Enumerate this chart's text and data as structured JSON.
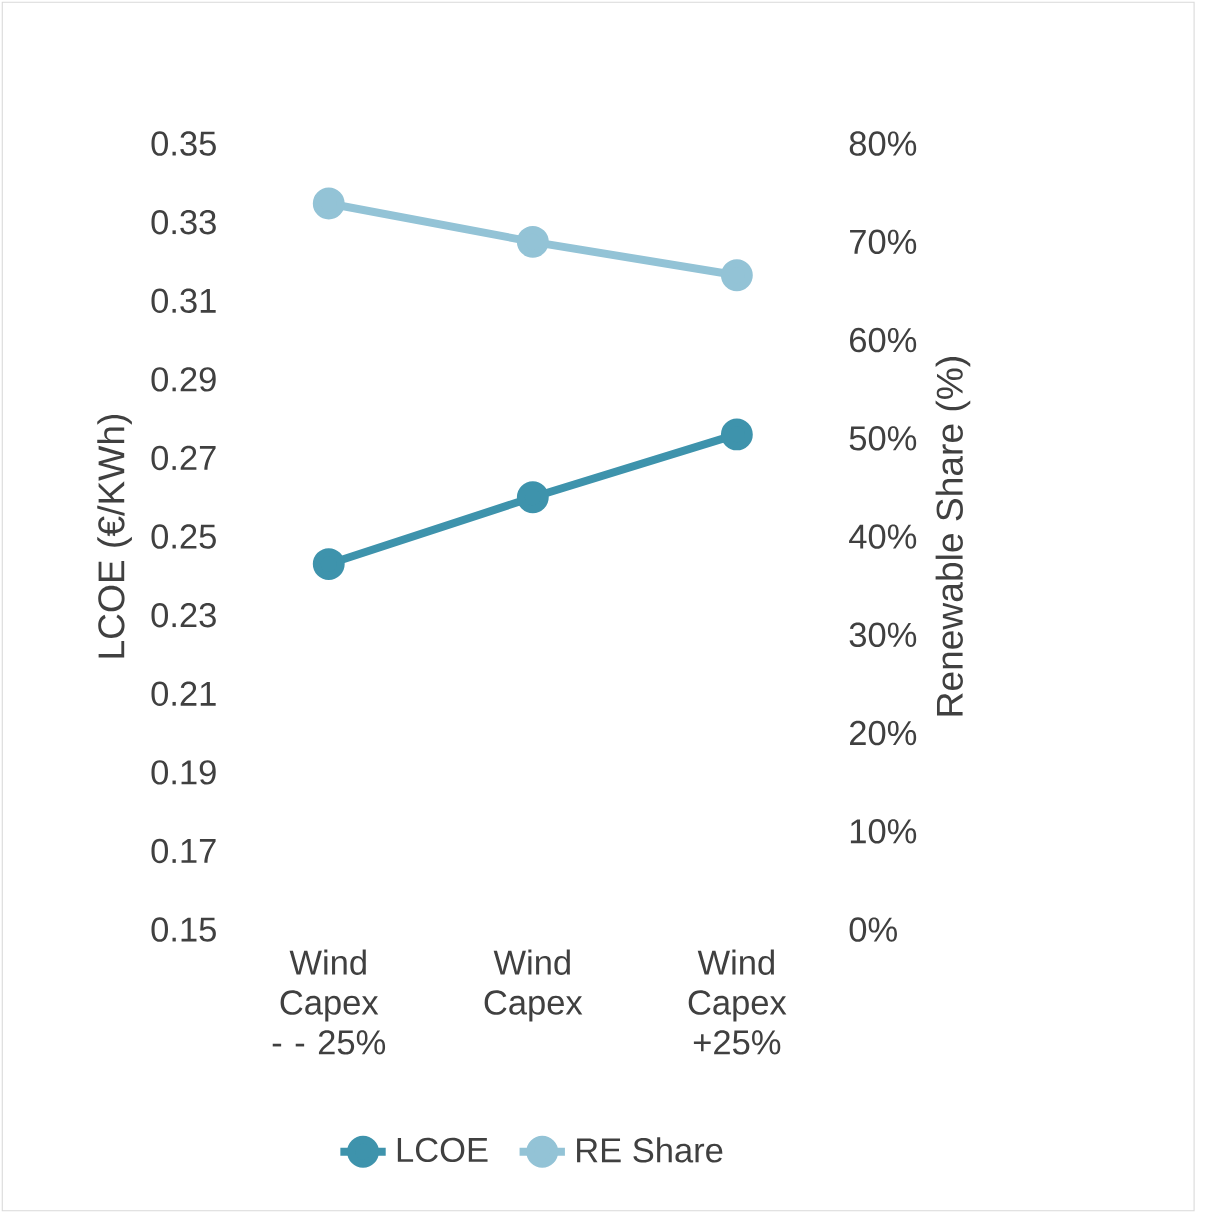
{
  "chart_data": {
    "type": "line",
    "categories": [
      "Wind Capex - - 25%",
      "Wind Capex",
      "Wind Capex +25%"
    ],
    "ylabel": "LCOE (€/KWh)",
    "y2label": "Renewable Share (%)",
    "series": [
      {
        "name": "LCOE",
        "color": "#3e93ac",
        "values": [
          0.243,
          0.26,
          0.276
        ]
      },
      {
        "name": "RE Share",
        "color": "#93c3d6",
        "values": [
          73.9,
          70.0,
          66.6
        ],
        "axis": "y2"
      }
    ],
    "ylim": [
      0.15,
      0.35
    ],
    "yticks": [
      0.15,
      0.17,
      0.19,
      0.21,
      0.23,
      0.25,
      0.27,
      0.29,
      0.31,
      0.33,
      0.35
    ],
    "y2lim": [
      0,
      80
    ],
    "y2ticks": [
      {
        "value": 0,
        "label": "0%"
      },
      {
        "value": 10,
        "label": "10%"
      },
      {
        "value": 20,
        "label": "20%"
      },
      {
        "value": 30,
        "label": "30%"
      },
      {
        "value": 40,
        "label": "40%"
      },
      {
        "value": 50,
        "label": "50%"
      },
      {
        "value": 60,
        "label": "60%"
      },
      {
        "value": 70,
        "label": "70%"
      },
      {
        "value": 80,
        "label": "80%"
      }
    ],
    "marker": "circle",
    "legend": "bottom",
    "grid": false
  }
}
